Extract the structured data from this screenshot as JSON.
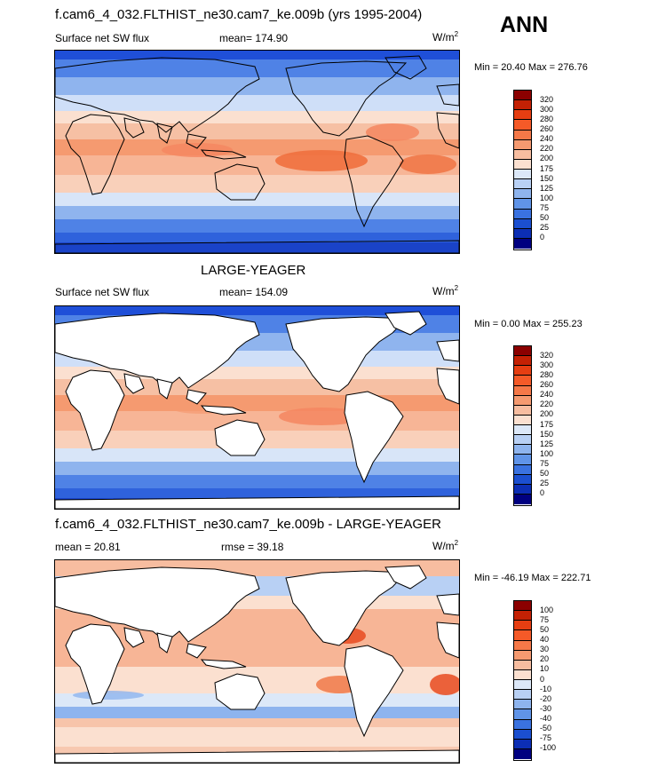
{
  "season_label": "ANN",
  "panels": [
    {
      "title": "f.cam6_4_032.FLTHIST_ne30.cam7_ke.009b (yrs 1995-2004)",
      "left_label": "Surface net SW flux",
      "center_label": "mean= 174.90",
      "units": "W/m",
      "units_sup": "2",
      "minmax": "Min =  20.40 Max = 276.76",
      "colorbar": {
        "labels": [
          "320",
          "300",
          "280",
          "260",
          "240",
          "220",
          "200",
          "175",
          "150",
          "125",
          "100",
          "75",
          "50",
          "25",
          "0"
        ],
        "colors": [
          "#8b0000",
          "#c42104",
          "#e63e12",
          "#f55a28",
          "#f57848",
          "#f59a70",
          "#f7bda0",
          "#fbe0d0",
          "#dce8f8",
          "#b8d0f4",
          "#8eb4ee",
          "#6094e8",
          "#3a72e0",
          "#1b4fd0",
          "#0c2eb4",
          "#000080"
        ]
      }
    },
    {
      "title": "LARGE-YEAGER",
      "left_label": "Surface net SW flux",
      "center_label": "mean= 154.09",
      "units": "W/m",
      "units_sup": "2",
      "minmax": "Min =   0.00 Max = 255.23",
      "colorbar": {
        "labels": [
          "320",
          "300",
          "280",
          "260",
          "240",
          "220",
          "200",
          "175",
          "150",
          "125",
          "100",
          "75",
          "50",
          "25",
          "0"
        ],
        "colors": [
          "#8b0000",
          "#c42104",
          "#e63e12",
          "#f55a28",
          "#f57848",
          "#f59a70",
          "#f7bda0",
          "#fbe0d0",
          "#dce8f8",
          "#b8d0f4",
          "#8eb4ee",
          "#6094e8",
          "#3a72e0",
          "#1b4fd0",
          "#0c2eb4",
          "#000080"
        ]
      }
    },
    {
      "title": "f.cam6_4_032.FLTHIST_ne30.cam7_ke.009b - LARGE-YEAGER",
      "left_label": "mean =  20.81",
      "center_label": "rmse =  39.18",
      "units": "W/m",
      "units_sup": "2",
      "minmax": "Min = -46.19 Max = 222.71",
      "colorbar": {
        "labels": [
          "100",
          "75",
          "50",
          "40",
          "30",
          "20",
          "10",
          "0",
          "-10",
          "-20",
          "-30",
          "-40",
          "-50",
          "-75",
          "-100"
        ],
        "colors": [
          "#8b0000",
          "#c42104",
          "#e63e12",
          "#f55a28",
          "#f57848",
          "#f59a70",
          "#f7bda0",
          "#fbe0d0",
          "#dce8f8",
          "#b8d0f4",
          "#8eb4ee",
          "#6094e8",
          "#3a72e0",
          "#1b4fd0",
          "#0c2eb4",
          "#000080"
        ]
      }
    }
  ],
  "map_colors": {
    "sw_bands": [
      [
        10,
        "#1f4fd8"
      ],
      [
        30,
        "#4f82e6"
      ],
      [
        50,
        "#8fb4ee"
      ],
      [
        68,
        "#cfdff8"
      ],
      [
        82,
        "#fbe0d0"
      ],
      [
        100,
        "#f6c0a4"
      ],
      [
        118,
        "#f59a70"
      ],
      [
        140,
        "#f7b596"
      ],
      [
        160,
        "#f9d0ba"
      ],
      [
        175,
        "#d8e5f8"
      ],
      [
        190,
        "#8fb4ee"
      ],
      [
        205,
        "#4f82e6"
      ],
      [
        216,
        "#2f62dc"
      ],
      [
        226,
        "#1a43c8"
      ]
    ],
    "diff_bands": [
      [
        18,
        "#f7bda0"
      ],
      [
        40,
        "#b8d0f4"
      ],
      [
        55,
        "#fbe0d0"
      ],
      [
        120,
        "#f7b596"
      ],
      [
        150,
        "#fbe0d0"
      ],
      [
        165,
        "#dce8f8"
      ],
      [
        178,
        "#8eb4ee"
      ],
      [
        188,
        "#f7c4aa"
      ],
      [
        210,
        "#fbe0d0"
      ],
      [
        226,
        "#f7c8b0"
      ]
    ],
    "land_fill": "#ffffff",
    "coast_stroke": "#000000"
  }
}
